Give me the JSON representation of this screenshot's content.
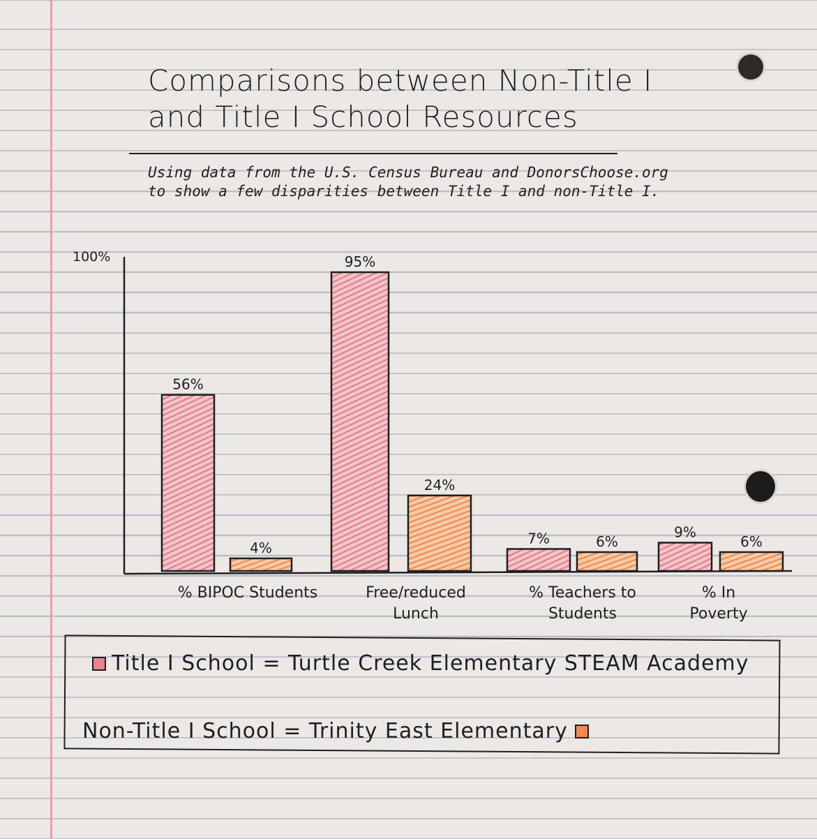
{
  "title": "Comparisons between Non-Title I and Title I School Resources",
  "subtitle_lines": [
    "Using data from the U.S. Census Bureau and DonorsChoose.org",
    "to show a few disparities between Title I and non-Title I."
  ],
  "colors": {
    "title1": "#e8848f",
    "non_title1": "#f08a4f",
    "ink": "#1f1f1f"
  },
  "legend": {
    "title1": "Title I School = Turtle Creek Elementary STEAM Academy",
    "non_title1": "Non-Title I School = Trinity East Elementary"
  },
  "chart_data": {
    "type": "bar",
    "y_tick_label": "100%",
    "ylim": [
      0,
      100
    ],
    "categories": [
      [
        "% BIPOC Students"
      ],
      [
        "Free/reduced",
        "Lunch"
      ],
      [
        "% Teachers to",
        "Students"
      ],
      [
        "% In",
        "Poverty"
      ]
    ],
    "series": [
      {
        "name": "Title I School",
        "values": [
          56,
          95,
          7,
          9
        ],
        "labels": [
          "56%",
          "95%",
          "7%",
          "9%"
        ]
      },
      {
        "name": "Non-Title I School",
        "values": [
          4,
          24,
          6,
          6
        ],
        "labels": [
          "4%",
          "24%",
          "6%",
          "6%"
        ]
      }
    ]
  }
}
